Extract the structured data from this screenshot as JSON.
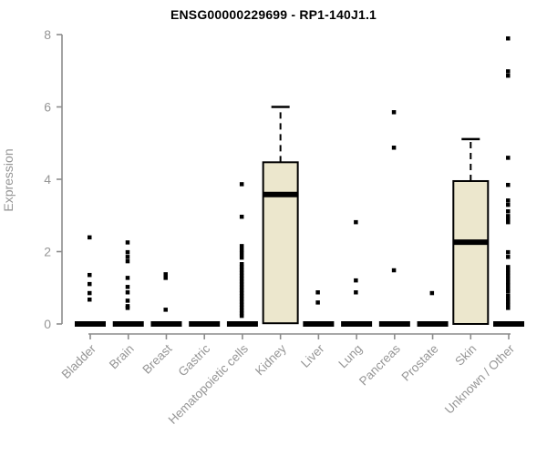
{
  "page_title": "ENSG00000229699 - RP1-140J1.1",
  "chart_data": {
    "type": "boxplot",
    "title": "ENSG00000229699 - RP1-140J1.1",
    "xlabel": "",
    "ylabel": "Expression",
    "ylim": [
      0,
      8
    ],
    "yticks": [
      0,
      2,
      4,
      6,
      8
    ],
    "grid": false,
    "legend": "none",
    "box_fill_color": "#ECE7CD",
    "box_stroke_color": "#000000",
    "axis_color": "#8C8C8C",
    "tick_label_color": "#969696",
    "categories": [
      "Bladder",
      "Brain",
      "Breast",
      "Gastric",
      "Hematopoietic cells",
      "Kidney",
      "Liver",
      "Lung",
      "Pancreas",
      "Prostate",
      "Skin",
      "Unknown / Other"
    ],
    "series": [
      {
        "category": "Bladder",
        "q1": 0,
        "median": 0,
        "q3": 0,
        "whisker_low": 0,
        "whisker_high": 0,
        "outliers": [
          2.4,
          1.36,
          1.11,
          0.86,
          0.68
        ]
      },
      {
        "category": "Brain",
        "q1": 0,
        "median": 0,
        "q3": 0,
        "whisker_low": 0,
        "whisker_high": 0,
        "outliers": [
          2.26,
          1.99,
          1.86,
          1.74,
          1.28,
          1.03,
          0.88,
          0.65,
          0.5,
          0.45
        ]
      },
      {
        "category": "Breast",
        "q1": 0,
        "median": 0,
        "q3": 0,
        "whisker_low": 0,
        "whisker_high": 0,
        "outliers": [
          1.38,
          1.28,
          0.4
        ]
      },
      {
        "category": "Gastric",
        "q1": 0,
        "median": 0,
        "q3": 0,
        "whisker_low": 0,
        "whisker_high": 0,
        "outliers": []
      },
      {
        "category": "Hematopoietic cells",
        "q1": 0,
        "median": 0,
        "q3": 0,
        "whisker_low": 0,
        "whisker_high": 0,
        "outliers": [
          3.87,
          2.97,
          2.16,
          2.05,
          1.95,
          1.84,
          1.66,
          1.58,
          1.5,
          1.42,
          1.34,
          1.26,
          1.18,
          1.1,
          1.02,
          0.94,
          0.86,
          0.78,
          0.7,
          0.62,
          0.54,
          0.46,
          0.38,
          0.3,
          0.23
        ]
      },
      {
        "category": "Kidney",
        "q1": 0.02,
        "median": 3.58,
        "q3": 4.47,
        "whisker_low": 0.02,
        "whisker_high": 6.0,
        "outliers": []
      },
      {
        "category": "Liver",
        "q1": 0,
        "median": 0,
        "q3": 0,
        "whisker_low": 0,
        "whisker_high": 0,
        "outliers": [
          0.88,
          0.6
        ]
      },
      {
        "category": "Lung",
        "q1": 0,
        "median": 0,
        "q3": 0,
        "whisker_low": 0,
        "whisker_high": 0,
        "outliers": [
          2.82,
          1.21,
          0.88
        ]
      },
      {
        "category": "Pancreas",
        "q1": 0,
        "median": 0,
        "q3": 0,
        "whisker_low": 0,
        "whisker_high": 0,
        "outliers": [
          5.86,
          4.88,
          1.49
        ]
      },
      {
        "category": "Prostate",
        "q1": 0,
        "median": 0,
        "q3": 0,
        "whisker_low": 0,
        "whisker_high": 0,
        "outliers": [
          0.86
        ]
      },
      {
        "category": "Skin",
        "q1": 0,
        "median": 2.26,
        "q3": 3.95,
        "whisker_low": 0,
        "whisker_high": 5.11,
        "outliers": []
      },
      {
        "category": "Unknown / Other",
        "q1": 0,
        "median": 0,
        "q3": 0,
        "whisker_low": 0,
        "whisker_high": 0,
        "outliers": [
          7.9,
          6.99,
          6.87,
          4.6,
          3.85,
          3.42,
          3.3,
          3.12,
          2.99,
          2.9,
          2.82,
          1.99,
          1.86,
          1.58,
          1.5,
          1.42,
          1.34,
          1.26,
          1.16,
          1.08,
          0.98,
          0.9,
          0.78,
          0.7,
          0.62,
          0.54,
          0.45
        ]
      }
    ]
  }
}
